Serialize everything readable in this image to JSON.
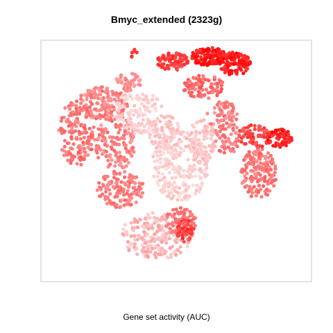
{
  "chart_data": {
    "type": "scatter",
    "title": "Bmyc_extended (2323g)",
    "xlabel": "Gene set activity (AUC)",
    "ylabel": "",
    "xlim": [
      0,
      100
    ],
    "ylim": [
      0,
      100
    ],
    "grid": false,
    "legend": "none",
    "colors": {
      "low": "#fde0e0",
      "high": "#ff0000",
      "frame": "#c8c8c8"
    },
    "series": [
      {
        "clusters": [
          {
            "cx": 12,
            "cy": 62,
            "rx": 7,
            "ry": 14,
            "n": 160,
            "amin": 0.35,
            "amax": 0.6
          },
          {
            "cx": 22,
            "cy": 75,
            "rx": 10,
            "ry": 7,
            "n": 150,
            "amin": 0.3,
            "amax": 0.55
          },
          {
            "cx": 27,
            "cy": 58,
            "rx": 8,
            "ry": 12,
            "n": 150,
            "amin": 0.3,
            "amax": 0.55
          },
          {
            "cx": 29,
            "cy": 38,
            "rx": 9,
            "ry": 8,
            "n": 140,
            "amin": 0.35,
            "amax": 0.55
          },
          {
            "cx": 36,
            "cy": 72,
            "rx": 9,
            "ry": 10,
            "n": 120,
            "amin": 0.0,
            "amax": 0.15
          },
          {
            "cx": 32,
            "cy": 84,
            "rx": 5,
            "ry": 4,
            "n": 50,
            "amin": 0.25,
            "amax": 0.45
          },
          {
            "cx": 52,
            "cy": 48,
            "rx": 11,
            "ry": 15,
            "n": 240,
            "amin": 0.0,
            "amax": 0.15
          },
          {
            "cx": 46,
            "cy": 62,
            "rx": 6,
            "ry": 8,
            "n": 80,
            "amin": 0.05,
            "amax": 0.2
          },
          {
            "cx": 60,
            "cy": 58,
            "rx": 6,
            "ry": 10,
            "n": 90,
            "amin": 0.05,
            "amax": 0.2
          },
          {
            "cx": 43,
            "cy": 18,
            "rx": 14,
            "ry": 10,
            "n": 220,
            "amin": 0.05,
            "amax": 0.3
          },
          {
            "cx": 52,
            "cy": 24,
            "rx": 6,
            "ry": 6,
            "n": 80,
            "amin": 0.4,
            "amax": 0.6
          },
          {
            "cx": 54,
            "cy": 20,
            "rx": 3.5,
            "ry": 5,
            "n": 50,
            "amin": 0.55,
            "amax": 0.85
          },
          {
            "cx": 49,
            "cy": 93,
            "rx": 6,
            "ry": 4,
            "n": 90,
            "amin": 0.6,
            "amax": 0.85
          },
          {
            "cx": 63,
            "cy": 95,
            "rx": 7,
            "ry": 4,
            "n": 150,
            "amin": 0.75,
            "amax": 1.0
          },
          {
            "cx": 73,
            "cy": 92,
            "rx": 6,
            "ry": 5,
            "n": 110,
            "amin": 0.75,
            "amax": 1.0
          },
          {
            "cx": 61,
            "cy": 82,
            "rx": 8,
            "ry": 5,
            "n": 90,
            "amin": 0.4,
            "amax": 0.65
          },
          {
            "cx": 68,
            "cy": 70,
            "rx": 6,
            "ry": 6,
            "n": 60,
            "amin": 0.3,
            "amax": 0.55
          },
          {
            "cx": 70,
            "cy": 60,
            "rx": 5,
            "ry": 7,
            "n": 60,
            "amin": 0.35,
            "amax": 0.55
          },
          {
            "cx": 82,
            "cy": 45,
            "rx": 7,
            "ry": 11,
            "n": 170,
            "amin": 0.35,
            "amax": 0.6
          },
          {
            "cx": 81,
            "cy": 61,
            "rx": 7,
            "ry": 5,
            "n": 80,
            "amin": 0.55,
            "amax": 0.8
          },
          {
            "cx": 90,
            "cy": 60,
            "rx": 5,
            "ry": 4,
            "n": 70,
            "amin": 0.7,
            "amax": 1.0
          },
          {
            "cx": 34,
            "cy": 96,
            "rx": 1.5,
            "ry": 2.5,
            "n": 8,
            "amin": 0.6,
            "amax": 0.8
          }
        ]
      }
    ]
  }
}
